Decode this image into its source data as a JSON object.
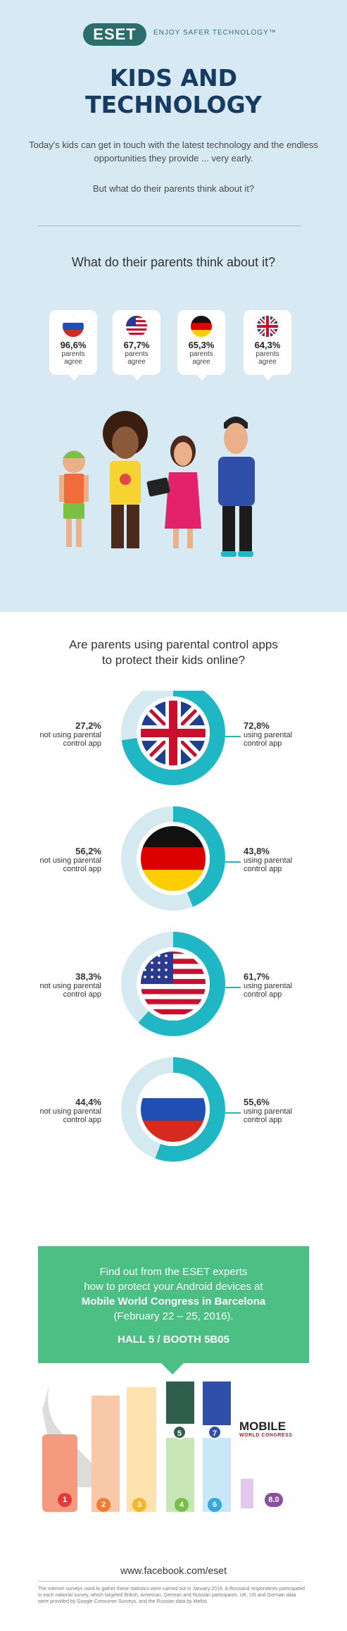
{
  "header": {
    "logo": "ESET",
    "tagline": "ENJOY SAFER TECHNOLOGY™",
    "title_line1": "KIDS AND",
    "title_line2": "TECHNOLOGY",
    "intro1": "Today's kids can get in touch with the latest technology and the endless opportunities they provide ... very early.",
    "intro2": "But what do their parents think about it?"
  },
  "agree_section": {
    "question": "What do their parents think about it?",
    "cards": [
      {
        "country": "Russia",
        "flag": "russia-flag",
        "pct": "96,6%",
        "line1": "parents",
        "line2": "agree"
      },
      {
        "country": "USA",
        "flag": "usa-flag",
        "pct": "67,7%",
        "line1": "parents",
        "line2": "agree"
      },
      {
        "country": "Germany",
        "flag": "germany-flag",
        "pct": "65,3%",
        "line1": "parents",
        "line2": "agree"
      },
      {
        "country": "UK",
        "flag": "uk-flag",
        "pct": "64,3%",
        "line1": "parents",
        "line2": "agree"
      }
    ]
  },
  "control_section": {
    "question_line1": "Are parents using parental control apps",
    "question_line2": "to protect their kids online?"
  },
  "chart_data": {
    "type": "pie",
    "title": "Are parents using parental control apps to protect their kids online?",
    "series": [
      {
        "country": "UK",
        "not_using": 27.2,
        "using": 72.8,
        "not_label": "27,2%",
        "using_label": "72,8%"
      },
      {
        "country": "Germany",
        "not_using": 56.2,
        "using": 43.8,
        "not_label": "56,2%",
        "using_label": "43,8%"
      },
      {
        "country": "USA",
        "not_using": 38.3,
        "using": 61.7,
        "not_label": "38,3%",
        "using_label": "61,7%"
      },
      {
        "country": "Russia",
        "not_using": 44.4,
        "using": 55.6,
        "not_label": "44,4%",
        "using_label": "55,6%"
      }
    ],
    "not_text_line1": "not using parental",
    "not_text_line2": "control app",
    "using_text_line1": "using parental",
    "using_text_line2": "control app",
    "colors": {
      "using": "#1fb7c3",
      "not_using": "#d5e9f1"
    }
  },
  "event": {
    "line1": "Find out from the ESET experts",
    "line2": "how to protect your Android devices at",
    "line3": "Mobile World Congress in Barcelona",
    "line4": "(February 22 – 25, 2016).",
    "line5": "HALL 5   /   BOOTH 5B05",
    "halls": [
      "1",
      "2",
      "3",
      "4",
      "5",
      "6",
      "7",
      "8.0"
    ],
    "mwc_big": "MOBILE",
    "mwc_small": "WORLD CONGRESS"
  },
  "footer": {
    "facebook": "www.facebook.com/eset",
    "note": "The internet surveys used to gather these statistics were carried out in January 2016. A thousand respondents participated in each national survey, which targeted British, American, German and Russian participants. UK, US and German data were provided by Google Consumer Surveys, and the Russian data by Mellro."
  }
}
